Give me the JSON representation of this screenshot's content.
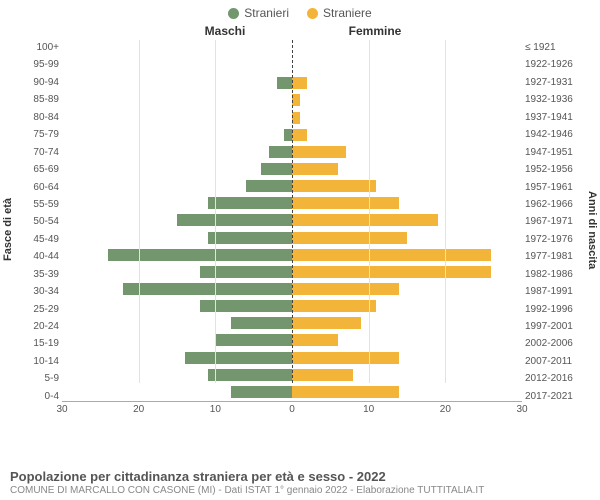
{
  "colors": {
    "male": "#73966e",
    "female": "#f3b43a",
    "grid": "#e2e2e2",
    "centerline": "#444444",
    "text": "#555555",
    "bg": "#ffffff"
  },
  "legend": {
    "male": "Stranieri",
    "female": "Straniere"
  },
  "side_titles": {
    "left": "Maschi",
    "right": "Femmine"
  },
  "y_labels": {
    "left": "Fasce di età",
    "right": "Anni di nascita"
  },
  "x_axis": {
    "max": 30,
    "ticks": [
      30,
      20,
      10,
      0,
      10,
      20,
      30
    ]
  },
  "rows": [
    {
      "age": "100+",
      "birth": "≤ 1921",
      "m": 0,
      "f": 0
    },
    {
      "age": "95-99",
      "birth": "1922-1926",
      "m": 0,
      "f": 0
    },
    {
      "age": "90-94",
      "birth": "1927-1931",
      "m": 2,
      "f": 2
    },
    {
      "age": "85-89",
      "birth": "1932-1936",
      "m": 0,
      "f": 1
    },
    {
      "age": "80-84",
      "birth": "1937-1941",
      "m": 0,
      "f": 1
    },
    {
      "age": "75-79",
      "birth": "1942-1946",
      "m": 1,
      "f": 2
    },
    {
      "age": "70-74",
      "birth": "1947-1951",
      "m": 3,
      "f": 7
    },
    {
      "age": "65-69",
      "birth": "1952-1956",
      "m": 4,
      "f": 6
    },
    {
      "age": "60-64",
      "birth": "1957-1961",
      "m": 6,
      "f": 11
    },
    {
      "age": "55-59",
      "birth": "1962-1966",
      "m": 11,
      "f": 14
    },
    {
      "age": "50-54",
      "birth": "1967-1971",
      "m": 15,
      "f": 19
    },
    {
      "age": "45-49",
      "birth": "1972-1976",
      "m": 11,
      "f": 15
    },
    {
      "age": "40-44",
      "birth": "1977-1981",
      "m": 24,
      "f": 26
    },
    {
      "age": "35-39",
      "birth": "1982-1986",
      "m": 12,
      "f": 26
    },
    {
      "age": "30-34",
      "birth": "1987-1991",
      "m": 22,
      "f": 14
    },
    {
      "age": "25-29",
      "birth": "1992-1996",
      "m": 12,
      "f": 11
    },
    {
      "age": "20-24",
      "birth": "1997-2001",
      "m": 8,
      "f": 9
    },
    {
      "age": "15-19",
      "birth": "2002-2006",
      "m": 10,
      "f": 6
    },
    {
      "age": "10-14",
      "birth": "2007-2011",
      "m": 14,
      "f": 14
    },
    {
      "age": "5-9",
      "birth": "2012-2016",
      "m": 11,
      "f": 8
    },
    {
      "age": "0-4",
      "birth": "2017-2021",
      "m": 8,
      "f": 14
    }
  ],
  "footer": {
    "main": "Popolazione per cittadinanza straniera per età e sesso - 2022",
    "sub": "COMUNE DI MARCALLO CON CASONE (MI) - Dati ISTAT 1° gennaio 2022 - Elaborazione TUTTITALIA.IT"
  }
}
